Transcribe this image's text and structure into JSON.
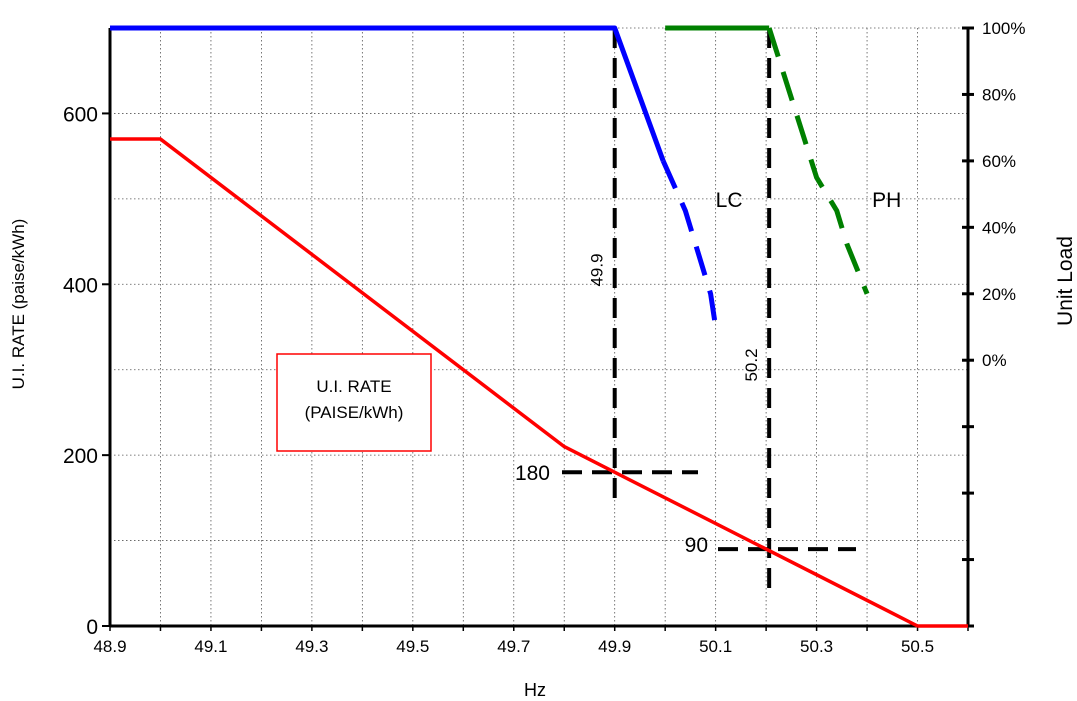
{
  "chart_data": {
    "type": "line",
    "xlabel": "Hz",
    "ylabel": "U.I. RATE  (paise/kWh)",
    "y2label": "Unit Load",
    "x_ticks": [
      "48.9",
      "49.1",
      "49.3",
      "49.5",
      "49.7",
      "49.9",
      "50.1",
      "50.3",
      "50.5"
    ],
    "y_ticks": [
      "0",
      "200",
      "400",
      "600"
    ],
    "y2_ticks": [
      "0%",
      "20%",
      "40%",
      "60%",
      "80%",
      "100%"
    ],
    "xlim": [
      48.9,
      50.6
    ],
    "ylim": [
      0,
      700
    ],
    "y2lim": [
      -0.8,
      1.0
    ],
    "grid": true,
    "series": [
      {
        "name": "U.I. RATE (PAISE/kWh)",
        "color": "#ff0000",
        "axis": "left",
        "style": "solid",
        "x": [
          48.9,
          49.0,
          49.8,
          50.5,
          50.6
        ],
        "y": [
          570,
          570,
          210,
          0,
          0
        ]
      },
      {
        "name": "LC",
        "color": "#0000ff",
        "axis": "right",
        "x": [
          48.9,
          49.9,
          49.996,
          50.04,
          50.05,
          50.08,
          50.09,
          50.1
        ],
        "y": [
          1.0,
          1.0,
          0.6,
          0.45,
          0.4,
          0.25,
          0.2,
          0.1
        ],
        "dash_from": 3
      },
      {
        "name": "PH",
        "color": "#008000",
        "axis": "right",
        "x": [
          50.0,
          50.206,
          50.3,
          50.34,
          50.36,
          50.4
        ],
        "y": [
          1.0,
          1.0,
          0.55,
          0.45,
          0.35,
          0.2
        ],
        "dash_from": 2
      }
    ],
    "reference_lines": [
      {
        "orientation": "vertical",
        "x": 49.9,
        "label": "49.9"
      },
      {
        "orientation": "vertical",
        "x": 50.206,
        "label": "50.2"
      },
      {
        "orientation": "horizontal",
        "y": 180,
        "label": "180"
      },
      {
        "orientation": "horizontal",
        "y": 90,
        "label": "90"
      }
    ],
    "annotations": [
      {
        "text": "LC",
        "x": 50.1,
        "y": 500
      },
      {
        "text": "PH",
        "x": 50.41,
        "y": 500
      }
    ],
    "legend": {
      "lines": [
        "U.I. RATE",
        "(PAISE/kWh)"
      ],
      "placement": "center-left"
    }
  }
}
